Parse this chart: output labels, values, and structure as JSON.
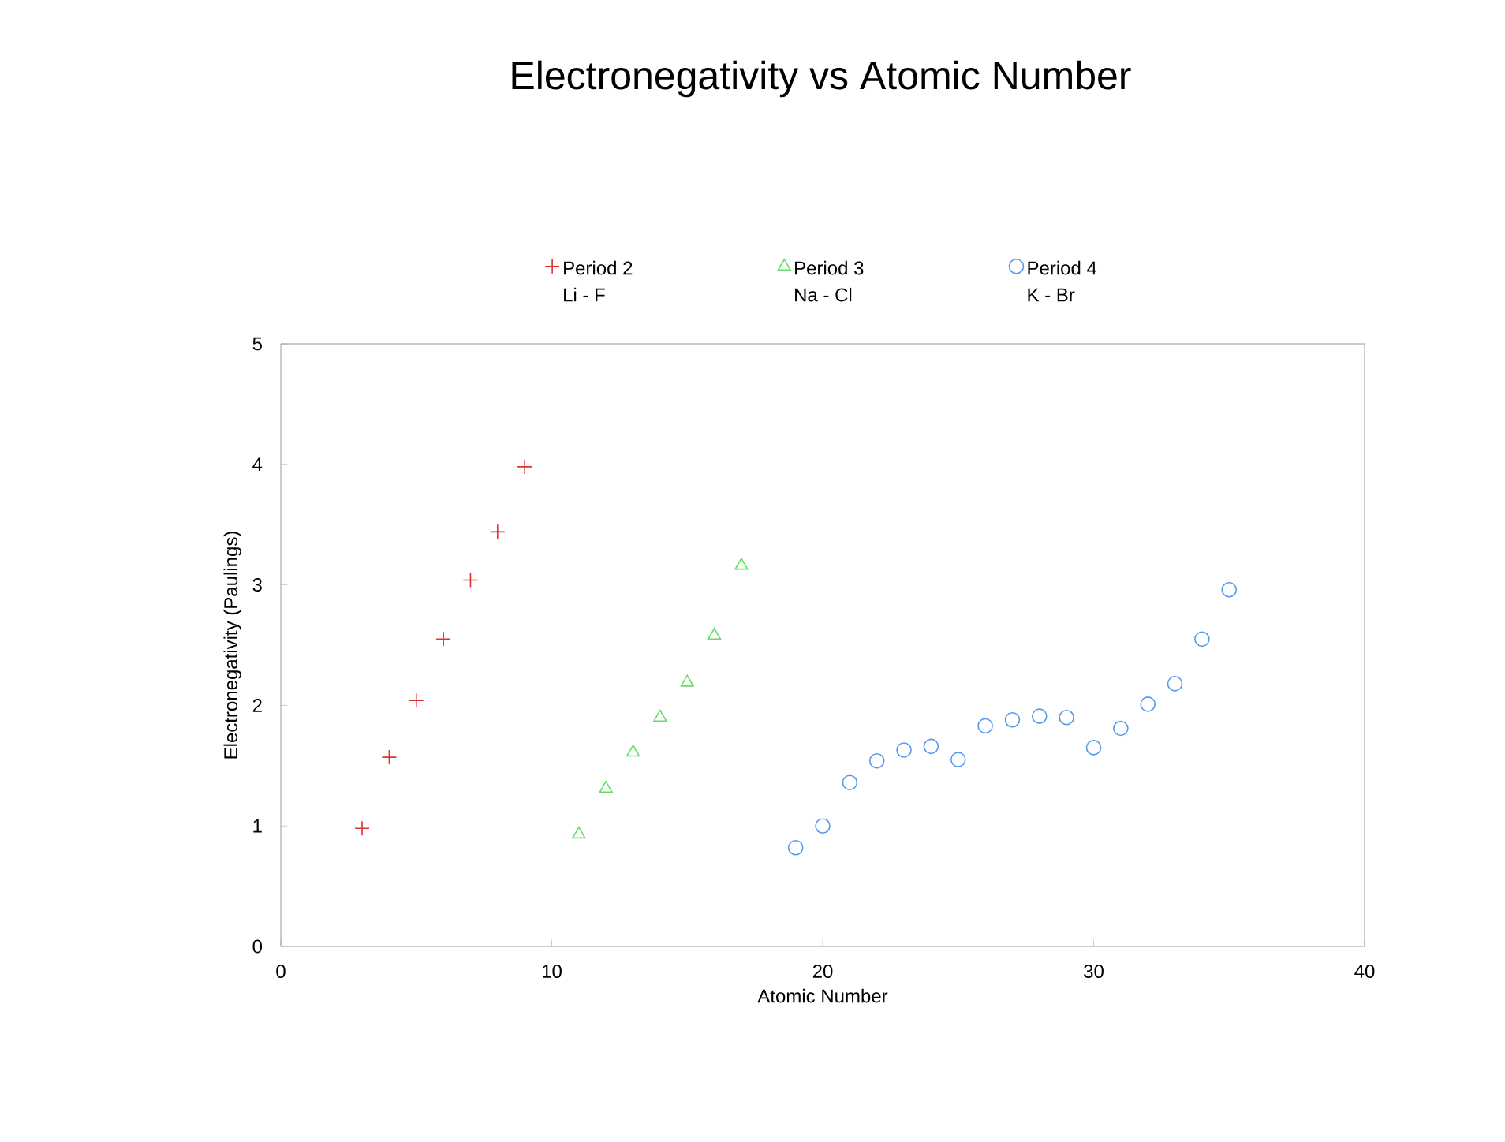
{
  "chart_data": {
    "type": "scatter",
    "title": "Electronegativity vs Atomic Number",
    "xlabel": "Atomic Number",
    "ylabel": "Electronegativity  (Paulings)",
    "xlim": [
      0,
      40
    ],
    "xticks": [
      0,
      10,
      20,
      30,
      40
    ],
    "ylim": [
      0,
      5
    ],
    "yticks": [
      0,
      1,
      2,
      3,
      4,
      5
    ],
    "legend": "top",
    "grid": false,
    "annotations": [
      "Li - F",
      "Na - Cl",
      "K - Br"
    ],
    "series": [
      {
        "name": "Period 2",
        "color": "#e03030",
        "marker": "cross",
        "x": [
          3,
          4,
          5,
          6,
          7,
          8,
          9
        ],
        "values": [
          0.98,
          1.57,
          2.04,
          2.55,
          3.04,
          3.44,
          3.98
        ]
      },
      {
        "name": "Period 3",
        "color": "#66dd66",
        "marker": "triangle",
        "x": [
          11,
          12,
          13,
          14,
          15,
          16,
          17
        ],
        "values": [
          0.93,
          1.31,
          1.61,
          1.9,
          2.19,
          2.58,
          3.16
        ]
      },
      {
        "name": "Period 4",
        "color": "#5599ee",
        "marker": "circle",
        "x": [
          19,
          20,
          21,
          22,
          23,
          24,
          25,
          26,
          27,
          28,
          29,
          30,
          31,
          32,
          33,
          34,
          35
        ],
        "values": [
          0.82,
          1.0,
          1.36,
          1.54,
          1.63,
          1.66,
          1.55,
          1.83,
          1.88,
          1.91,
          1.9,
          1.65,
          1.81,
          2.01,
          2.18,
          2.55,
          2.96
        ]
      }
    ]
  }
}
